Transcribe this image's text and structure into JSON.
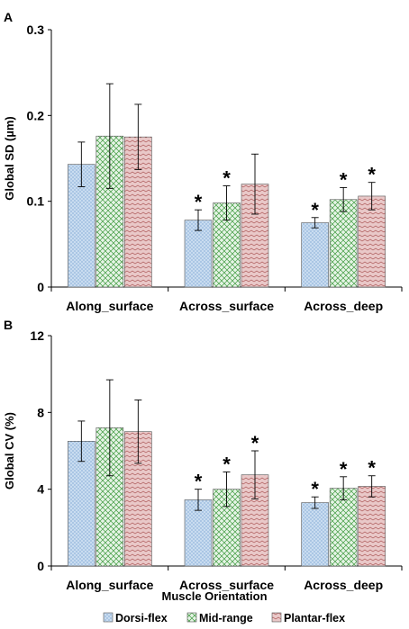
{
  "colors": {
    "dorsi_fill": "#c9dcf0",
    "dorsi_dot": "#5b8fc9",
    "mid_fill": "#e6f4e6",
    "mid_line": "#3f9a3f",
    "plantar_fill": "#e9c8c8",
    "plantar_line": "#a85050",
    "axis": "#000000"
  },
  "legend": {
    "entries": [
      "Dorsi-flex",
      "Mid-range",
      "Plantar-flex"
    ]
  },
  "chart_data": [
    {
      "type": "bar",
      "panel": "A",
      "ylabel": "Global SD (µm)",
      "ylim": [
        0,
        0.3
      ],
      "yticks": [
        0,
        0.1,
        0.2,
        0.3
      ],
      "ytick_labels": [
        "0",
        "0.1",
        "0.2",
        "0.3"
      ],
      "categories": [
        "Along_surface",
        "Across_surface",
        "Across_deep"
      ],
      "series": [
        {
          "name": "Dorsi-flex",
          "values": [
            0.143,
            0.078,
            0.075
          ],
          "errors": [
            0.026,
            0.012,
            0.006
          ],
          "sig": [
            false,
            true,
            true
          ]
        },
        {
          "name": "Mid-range",
          "values": [
            0.176,
            0.098,
            0.102
          ],
          "errors": [
            0.061,
            0.02,
            0.014
          ],
          "sig": [
            false,
            true,
            true
          ]
        },
        {
          "name": "Plantar-flex",
          "values": [
            0.175,
            0.12,
            0.106
          ],
          "errors": [
            0.038,
            0.035,
            0.016
          ],
          "sig": [
            false,
            false,
            true
          ]
        }
      ]
    },
    {
      "type": "bar",
      "panel": "B",
      "ylabel": "Global CV (%)",
      "xlabel": "Muscle Orientation",
      "ylim": [
        0,
        12
      ],
      "yticks": [
        0,
        4,
        8,
        12
      ],
      "ytick_labels": [
        "0",
        "4",
        "8",
        "12"
      ],
      "categories": [
        "Along_surface",
        "Across_surface",
        "Across_deep"
      ],
      "series": [
        {
          "name": "Dorsi-flex",
          "values": [
            6.5,
            3.45,
            3.3
          ],
          "errors": [
            1.05,
            0.55,
            0.3
          ],
          "sig": [
            false,
            true,
            true
          ]
        },
        {
          "name": "Mid-range",
          "values": [
            7.2,
            4.0,
            4.05
          ],
          "errors": [
            2.5,
            0.9,
            0.6
          ],
          "sig": [
            false,
            true,
            true
          ]
        },
        {
          "name": "Plantar-flex",
          "values": [
            7.0,
            4.75,
            4.15
          ],
          "errors": [
            1.65,
            1.25,
            0.55
          ],
          "sig": [
            false,
            true,
            true
          ]
        }
      ]
    }
  ],
  "significance_marker": "*"
}
